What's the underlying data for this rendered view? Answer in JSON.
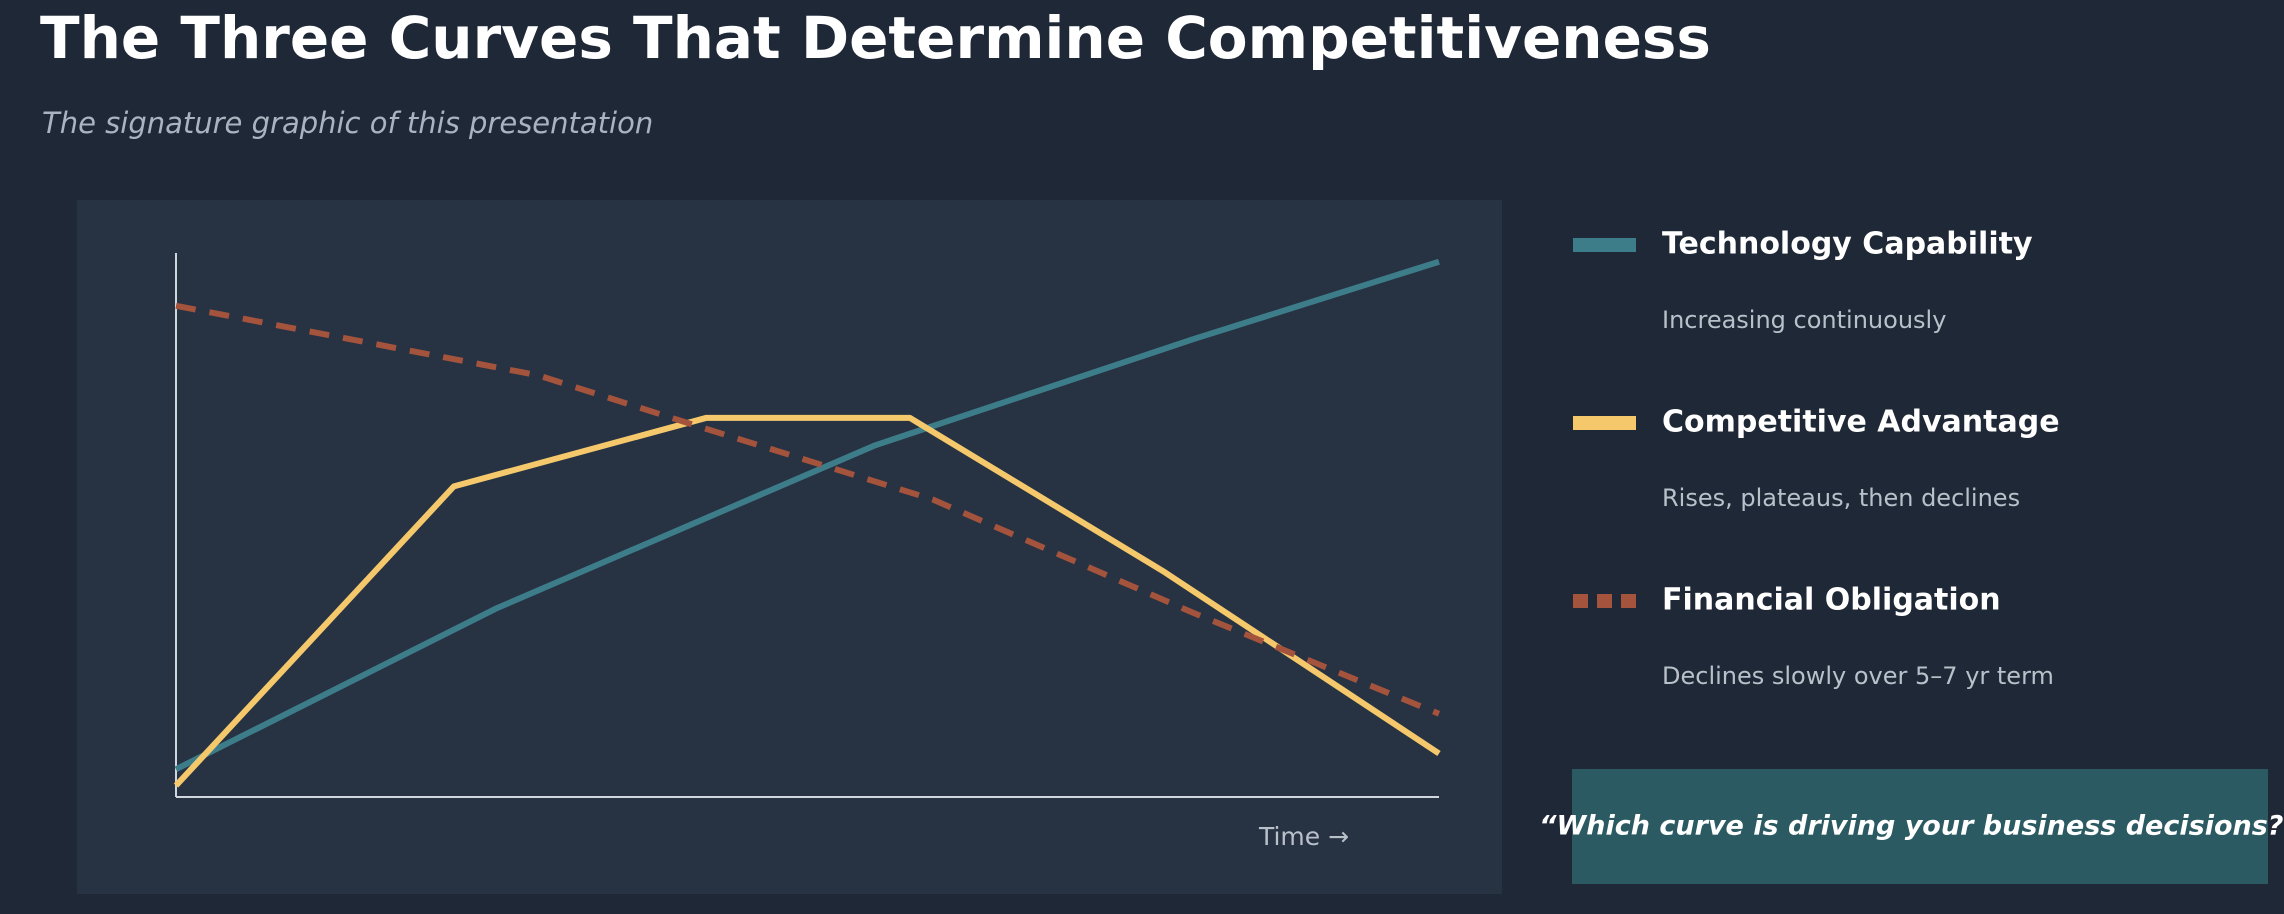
{
  "title": "The Three Curves That Determine Competitiveness",
  "subtitle": "The signature graphic of this presentation",
  "chart_data": {
    "type": "line",
    "x_label": "Time →",
    "xlim": [
      0,
      100
    ],
    "ylim": [
      0,
      100
    ],
    "series": [
      {
        "name": "Technology Capability",
        "description": "Increasing continuously",
        "color": "#3d7d8a",
        "style": "solid",
        "x": [
          0,
          25.3,
          55.3,
          80.6,
          100
        ],
        "values": [
          5.1,
          34.6,
          64.6,
          84.2,
          98.4
        ]
      },
      {
        "name": "Competitive Advantage",
        "description": "Rises, plateaus, then declines",
        "color": "#f5c96b",
        "style": "solid",
        "x": [
          0,
          22,
          42,
          58.1,
          78.3,
          100
        ],
        "values": [
          2.1,
          57.1,
          69.7,
          69.7,
          41.3,
          8.0
        ]
      },
      {
        "name": "Financial Obligation",
        "description": "Declines slowly over 5–7 yr term",
        "color": "#a4533c",
        "style": "dashed",
        "x": [
          0,
          28.7,
          41.4,
          59.9,
          80.6,
          100
        ],
        "values": [
          90.3,
          77.5,
          68.1,
          54.7,
          33.8,
          15.3
        ]
      }
    ]
  },
  "quote": "“Which curve is driving your business decisions?”"
}
